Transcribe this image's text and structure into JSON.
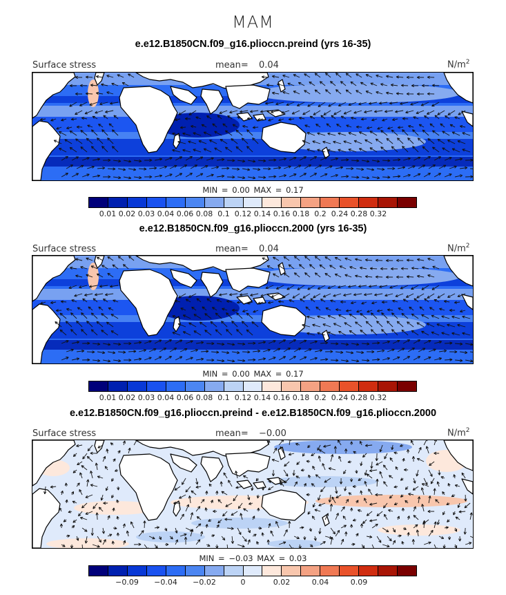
{
  "season": "MAM",
  "colors": {
    "scale": [
      "#00007a",
      "#0020b0",
      "#0838d6",
      "#1a52f0",
      "#2d6df5",
      "#4c86f2",
      "#86aaf0",
      "#bcd3f5",
      "#dfeafb",
      "#fde8dc",
      "#f8c6ad",
      "#f4a283",
      "#f07954",
      "#e9522a",
      "#d02d10",
      "#a81505",
      "#7a0000"
    ],
    "land": "#ffffff",
    "coast": "#000000",
    "arrow": "#111111"
  },
  "panels": [
    {
      "title": "e.e12.B1850CN.f09_g16.plioccn.preind (yrs 16-35)",
      "variable": "Surface stress",
      "mean_label": "mean=",
      "mean_value": "0.04",
      "units": "N/m",
      "units_exp": "2",
      "min_label": "MIN =",
      "min_value": "0.00",
      "max_label": "MAX =",
      "max_value": "0.17",
      "ticks": [
        "0.01",
        "0.02",
        "0.03",
        "0.04",
        "0.06",
        "0.08",
        "0.1",
        "0.12",
        "0.14",
        "0.16",
        "0.18",
        "0.2",
        "0.24",
        "0.28",
        "0.32"
      ],
      "kind": "abs"
    },
    {
      "title": "e.e12.B1850CN.f09_g16.plioccn.2000 (yrs 16-35)",
      "variable": "Surface stress",
      "mean_label": "mean=",
      "mean_value": "0.04",
      "units": "N/m",
      "units_exp": "2",
      "min_label": "MIN =",
      "min_value": "0.00",
      "max_label": "MAX =",
      "max_value": "0.17",
      "ticks": [
        "0.01",
        "0.02",
        "0.03",
        "0.04",
        "0.06",
        "0.08",
        "0.1",
        "0.12",
        "0.14",
        "0.16",
        "0.18",
        "0.2",
        "0.24",
        "0.28",
        "0.32"
      ],
      "kind": "abs"
    },
    {
      "title": "e.e12.B1850CN.f09_g16.plioccn.preind - e.e12.B1850CN.f09_g16.plioccn.2000",
      "variable": "Surface stress",
      "mean_label": "mean=",
      "mean_value": "−0.00",
      "units": "N/m",
      "units_exp": "2",
      "min_label": "MIN =",
      "min_value": "−0.03",
      "max_label": "MAX =",
      "max_value": "0.03",
      "ticks": [
        "−0.09",
        "−0.04",
        "−0.02",
        "0",
        "0.02",
        "0.04",
        "0.09"
      ],
      "kind": "diff"
    }
  ]
}
